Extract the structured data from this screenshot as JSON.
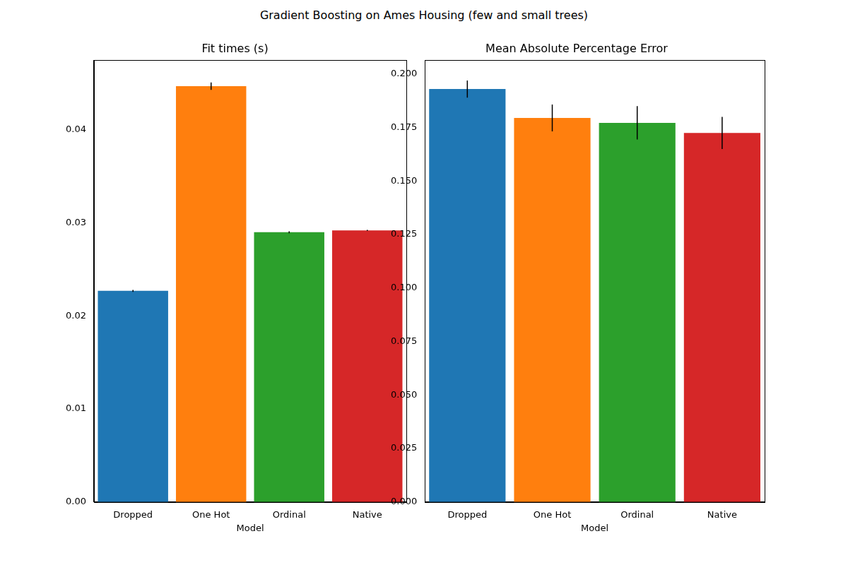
{
  "title": "Gradient Boosting on Ames Housing (few and small trees)",
  "chart_data": [
    {
      "type": "bar",
      "title": "Fit times (s)",
      "x_label": "Model",
      "categories": [
        "Dropped",
        "One Hot",
        "Ordinal",
        "Native"
      ],
      "values": [
        0.0227,
        0.0447,
        0.029,
        0.0292
      ],
      "errors": [
        0.0001,
        0.0004,
        0.0001,
        5e-05
      ],
      "colors": [
        "#1f77b4",
        "#ff7f0e",
        "#2ca02c",
        "#d62728"
      ],
      "ylim": [
        0,
        0.0475
      ],
      "yticks": [
        {
          "value": 0,
          "label": "0.00"
        },
        {
          "value": 0.01,
          "label": "0.01"
        },
        {
          "value": 0.02,
          "label": "0.02"
        },
        {
          "value": 0.03,
          "label": "0.03"
        },
        {
          "value": 0.04,
          "label": "0.04"
        }
      ],
      "grid": false
    },
    {
      "type": "bar",
      "title": "Mean Absolute Percentage Error",
      "x_label": "Model",
      "categories": [
        "Dropped",
        "One Hot",
        "Ordinal",
        "Native"
      ],
      "values": [
        0.193,
        0.1795,
        0.1772,
        0.1725
      ],
      "errors": [
        0.004,
        0.0063,
        0.0078,
        0.0075
      ],
      "colors": [
        "#1f77b4",
        "#ff7f0e",
        "#2ca02c",
        "#d62728"
      ],
      "ylim": [
        0,
        0.2065
      ],
      "yticks": [
        {
          "value": 0,
          "label": "0.000"
        },
        {
          "value": 0.025,
          "label": "0.025"
        },
        {
          "value": 0.05,
          "label": "0.050"
        },
        {
          "value": 0.075,
          "label": "0.075"
        },
        {
          "value": 0.1,
          "label": "0.100"
        },
        {
          "value": 0.125,
          "label": "0.125"
        },
        {
          "value": 0.15,
          "label": "0.150"
        },
        {
          "value": 0.175,
          "label": "0.175"
        },
        {
          "value": 0.2,
          "label": "0.200"
        }
      ],
      "grid": false
    }
  ]
}
